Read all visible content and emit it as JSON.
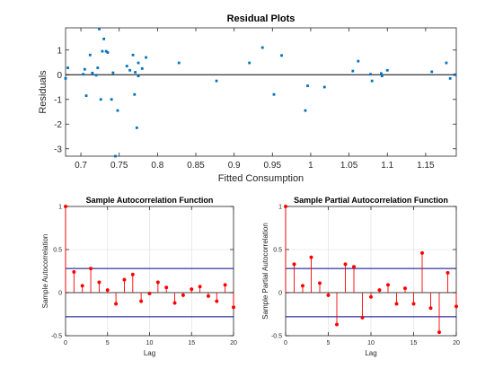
{
  "colors": {
    "scatter_marker": "#0072bd",
    "zero_line": "#000000",
    "stem": "#ff0000",
    "stem_marker": "#ff0000",
    "bound_line": "#00008b",
    "axis": "#262626",
    "grid": "#dcdcdc"
  },
  "chart_data": [
    {
      "type": "scatter",
      "title": "Residual Plots",
      "xlabel": "Fitted Consumption",
      "ylabel": "Residuals",
      "xlim": [
        0.68,
        1.19
      ],
      "ylim": [
        -3.3,
        1.9
      ],
      "xticks": [
        0.7,
        0.75,
        0.8,
        0.85,
        0.9,
        0.95,
        1.0,
        1.05,
        1.1,
        1.15
      ],
      "xtick_labels": [
        "0.7",
        "0.75",
        "0.8",
        "0.85",
        "0.9",
        "0.95",
        "1",
        "1.05",
        "1.1",
        "1.15"
      ],
      "yticks": [
        -3,
        -2,
        -1,
        0,
        1
      ],
      "ytick_labels": [
        "-3",
        "-2",
        "-1",
        "0",
        "1"
      ],
      "grid": false,
      "zero_line": true,
      "points": [
        {
          "x": 0.68,
          "y": -0.15
        },
        {
          "x": 0.683,
          "y": 0.28
        },
        {
          "x": 0.703,
          "y": 0.02
        },
        {
          "x": 0.705,
          "y": 0.22
        },
        {
          "x": 0.707,
          "y": -0.85
        },
        {
          "x": 0.712,
          "y": 0.8
        },
        {
          "x": 0.715,
          "y": 0.07
        },
        {
          "x": 0.72,
          "y": -0.02
        },
        {
          "x": 0.722,
          "y": 0.28
        },
        {
          "x": 0.724,
          "y": 1.85
        },
        {
          "x": 0.726,
          "y": -1.0
        },
        {
          "x": 0.728,
          "y": 0.95
        },
        {
          "x": 0.73,
          "y": 1.45
        },
        {
          "x": 0.733,
          "y": 0.95
        },
        {
          "x": 0.735,
          "y": 0.9
        },
        {
          "x": 0.74,
          "y": -1.0
        },
        {
          "x": 0.742,
          "y": 0.08
        },
        {
          "x": 0.745,
          "y": -3.3
        },
        {
          "x": 0.748,
          "y": -1.45
        },
        {
          "x": 0.76,
          "y": 0.35
        },
        {
          "x": 0.764,
          "y": 0.18
        },
        {
          "x": 0.768,
          "y": 0.8
        },
        {
          "x": 0.77,
          "y": -0.8
        },
        {
          "x": 0.771,
          "y": 0.1
        },
        {
          "x": 0.773,
          "y": -2.15
        },
        {
          "x": 0.775,
          "y": -0.05
        },
        {
          "x": 0.775,
          "y": 0.48
        },
        {
          "x": 0.78,
          "y": 0.25
        },
        {
          "x": 0.785,
          "y": 0.7
        },
        {
          "x": 0.828,
          "y": 0.48
        },
        {
          "x": 0.877,
          "y": -0.25
        },
        {
          "x": 0.92,
          "y": 0.48
        },
        {
          "x": 0.937,
          "y": 1.1
        },
        {
          "x": 0.952,
          "y": -0.8
        },
        {
          "x": 0.962,
          "y": 0.78
        },
        {
          "x": 0.993,
          "y": -1.45
        },
        {
          "x": 0.996,
          "y": -0.45
        },
        {
          "x": 1.018,
          "y": -0.5
        },
        {
          "x": 1.055,
          "y": 0.15
        },
        {
          "x": 1.062,
          "y": 0.55
        },
        {
          "x": 1.078,
          "y": 0.02
        },
        {
          "x": 1.08,
          "y": -0.25
        },
        {
          "x": 1.092,
          "y": 0.05
        },
        {
          "x": 1.093,
          "y": -0.05
        },
        {
          "x": 1.1,
          "y": 0.18
        },
        {
          "x": 1.158,
          "y": 0.12
        },
        {
          "x": 1.177,
          "y": 0.48
        },
        {
          "x": 1.182,
          "y": -0.15
        },
        {
          "x": 1.188,
          "y": 0.0
        }
      ]
    },
    {
      "type": "stem",
      "title": "Sample Autocorrelation Function",
      "xlabel": "Lag",
      "ylabel": "Sample Autocorrelation",
      "xlim": [
        0,
        20
      ],
      "ylim": [
        -0.5,
        1
      ],
      "xticks": [
        0,
        5,
        10,
        15,
        20
      ],
      "xtick_labels": [
        "0",
        "5",
        "10",
        "15",
        "20"
      ],
      "yticks": [
        -0.5,
        0,
        0.5,
        1
      ],
      "ytick_labels": [
        "-0.5",
        "0",
        "0.5",
        "1"
      ],
      "grid": true,
      "bounds": [
        0.28,
        -0.28
      ],
      "lags": [
        0,
        1,
        2,
        3,
        4,
        5,
        6,
        7,
        8,
        9,
        10,
        11,
        12,
        13,
        14,
        15,
        16,
        17,
        18,
        19,
        20
      ],
      "values": [
        1.0,
        0.24,
        0.08,
        0.28,
        0.12,
        0.03,
        -0.13,
        0.15,
        0.21,
        -0.1,
        -0.01,
        0.12,
        0.06,
        -0.12,
        -0.03,
        0.04,
        0.07,
        -0.04,
        -0.1,
        0.09,
        -0.17
      ]
    },
    {
      "type": "stem",
      "title": "Sample Partial Autocorrelation Function",
      "xlabel": "Lag",
      "ylabel": "Sample Partial Autocorrelation",
      "xlim": [
        0,
        20
      ],
      "ylim": [
        -0.5,
        1
      ],
      "xticks": [
        0,
        5,
        10,
        15,
        20
      ],
      "xtick_labels": [
        "0",
        "5",
        "10",
        "15",
        "20"
      ],
      "yticks": [
        -0.5,
        0,
        0.5,
        1
      ],
      "ytick_labels": [
        "-0.5",
        "0",
        "0.5",
        "1"
      ],
      "grid": true,
      "bounds": [
        0.28,
        -0.28
      ],
      "lags": [
        0,
        1,
        2,
        3,
        4,
        5,
        6,
        7,
        8,
        9,
        10,
        11,
        12,
        13,
        14,
        15,
        16,
        17,
        18,
        19,
        20
      ],
      "values": [
        1.0,
        0.33,
        0.08,
        0.41,
        0.11,
        -0.03,
        -0.37,
        0.33,
        0.3,
        -0.29,
        -0.05,
        0.03,
        0.09,
        -0.13,
        0.05,
        -0.13,
        0.46,
        -0.18,
        -0.46,
        0.23,
        -0.16
      ]
    }
  ]
}
